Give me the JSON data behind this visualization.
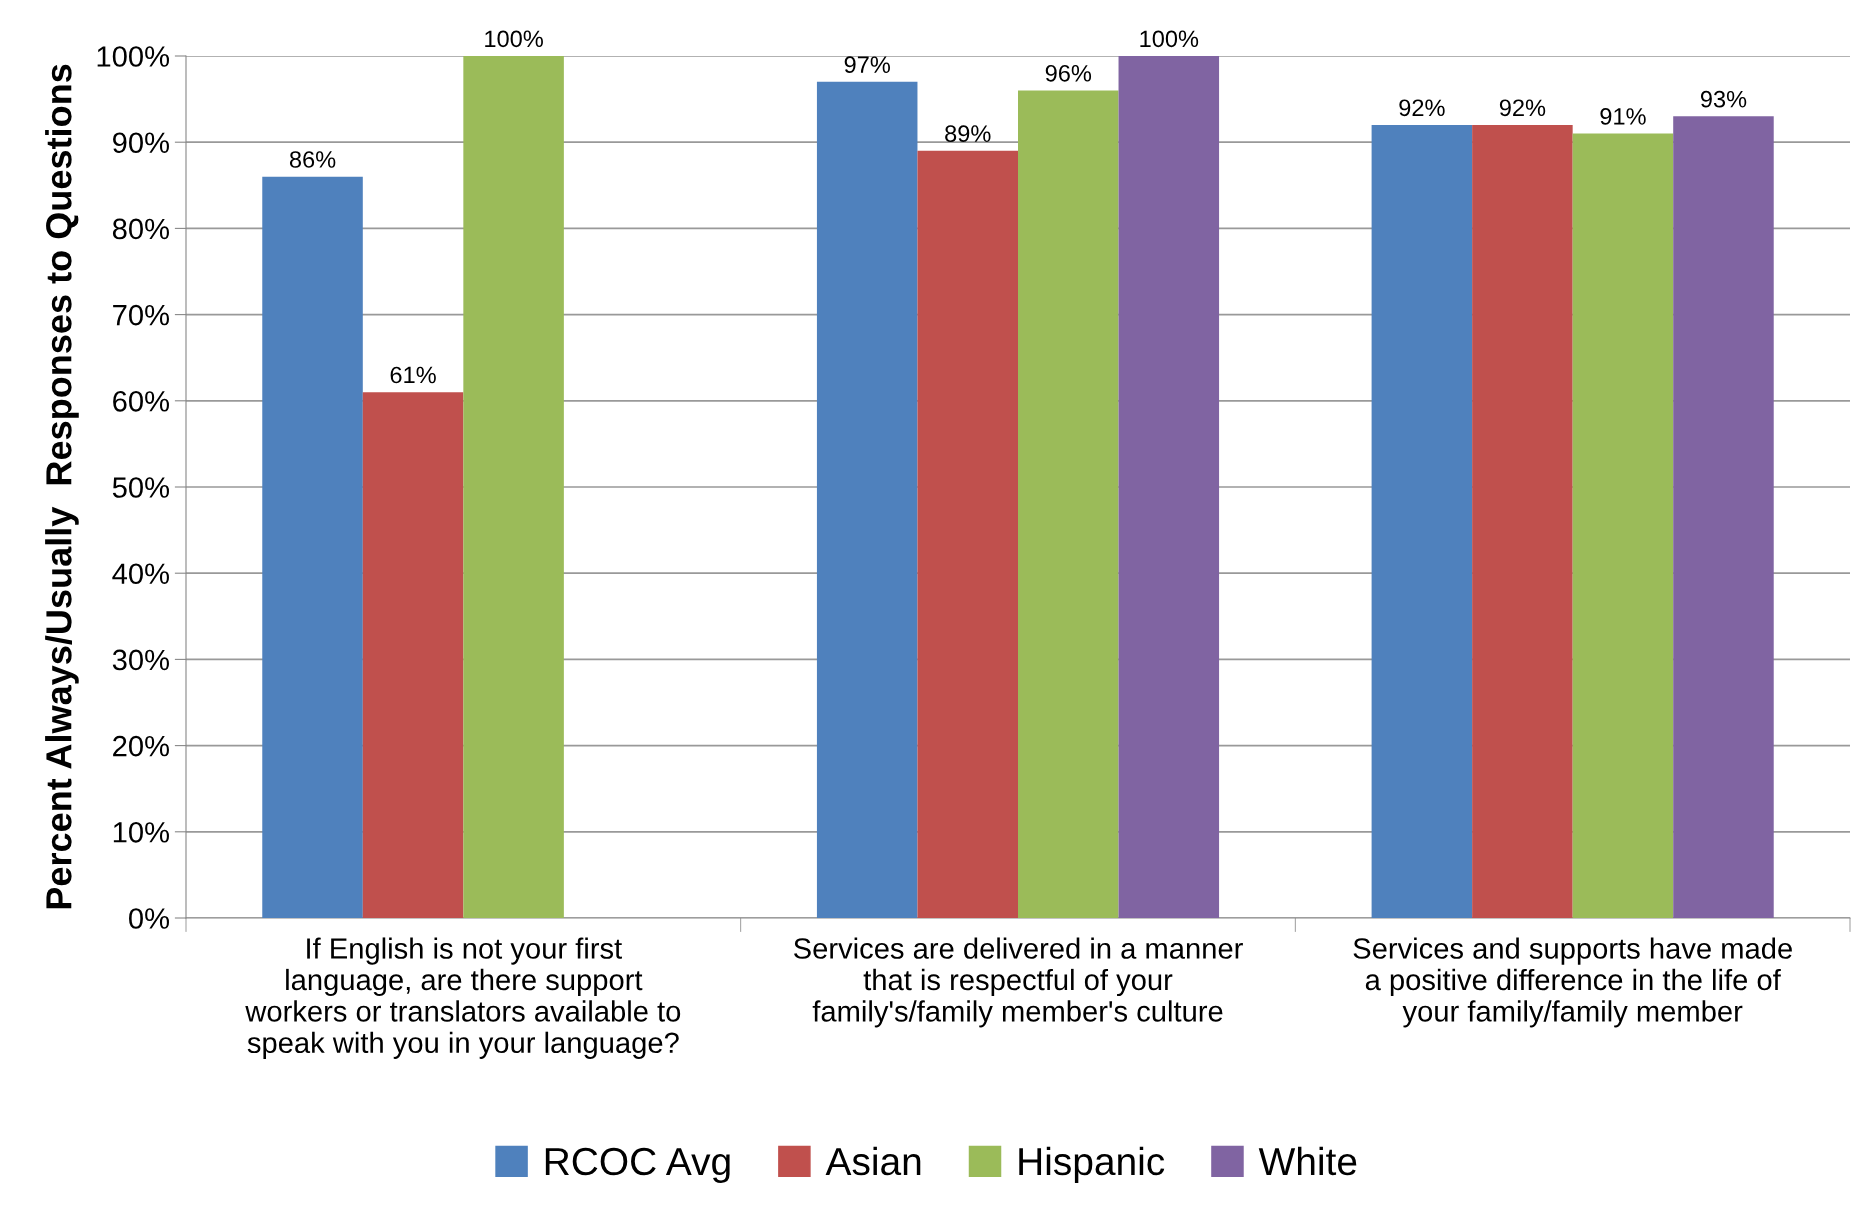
{
  "chart_data": {
    "type": "bar",
    "ylabel": "Percent Always/Usually  Responses to Questions",
    "categories": [
      "If English is not your first\nlanguage, are there support\nworkers or translators available to\nspeak with you in your language?",
      "Services are delivered in a manner\nthat is respectful of your\nfamily's/family member's culture",
      "Services and supports have made\na positive difference in the life of\nyour family/family member"
    ],
    "series": [
      {
        "name": "RCOC Avg",
        "color": "#4f81bd",
        "values": [
          86,
          97,
          92
        ],
        "value_labels": [
          "86%",
          "97%",
          "92%"
        ]
      },
      {
        "name": "Asian",
        "color": "#c0504d",
        "values": [
          61,
          89,
          92
        ],
        "value_labels": [
          "61%",
          "89%",
          "92%"
        ]
      },
      {
        "name": "Hispanic",
        "color": "#9bbb59",
        "values": [
          100,
          96,
          91
        ],
        "value_labels": [
          "100%",
          "96%",
          "91%"
        ]
      },
      {
        "name": "White",
        "color": "#8064a2",
        "values": [
          null,
          100,
          93
        ],
        "value_labels": [
          null,
          "100%",
          "93%"
        ]
      }
    ],
    "ylim": [
      0,
      100
    ],
    "yticks": [
      {
        "value": 0,
        "label": "0%"
      },
      {
        "value": 10,
        "label": "10%"
      },
      {
        "value": 20,
        "label": "20%"
      },
      {
        "value": 30,
        "label": "30%"
      },
      {
        "value": 40,
        "label": "40%"
      },
      {
        "value": 50,
        "label": "50%"
      },
      {
        "value": 60,
        "label": "60%"
      },
      {
        "value": 70,
        "label": "70%"
      },
      {
        "value": 80,
        "label": "80%"
      },
      {
        "value": 90,
        "label": "90%"
      },
      {
        "value": 100,
        "label": "100%"
      }
    ],
    "grid": "y",
    "legend": "bottom"
  }
}
